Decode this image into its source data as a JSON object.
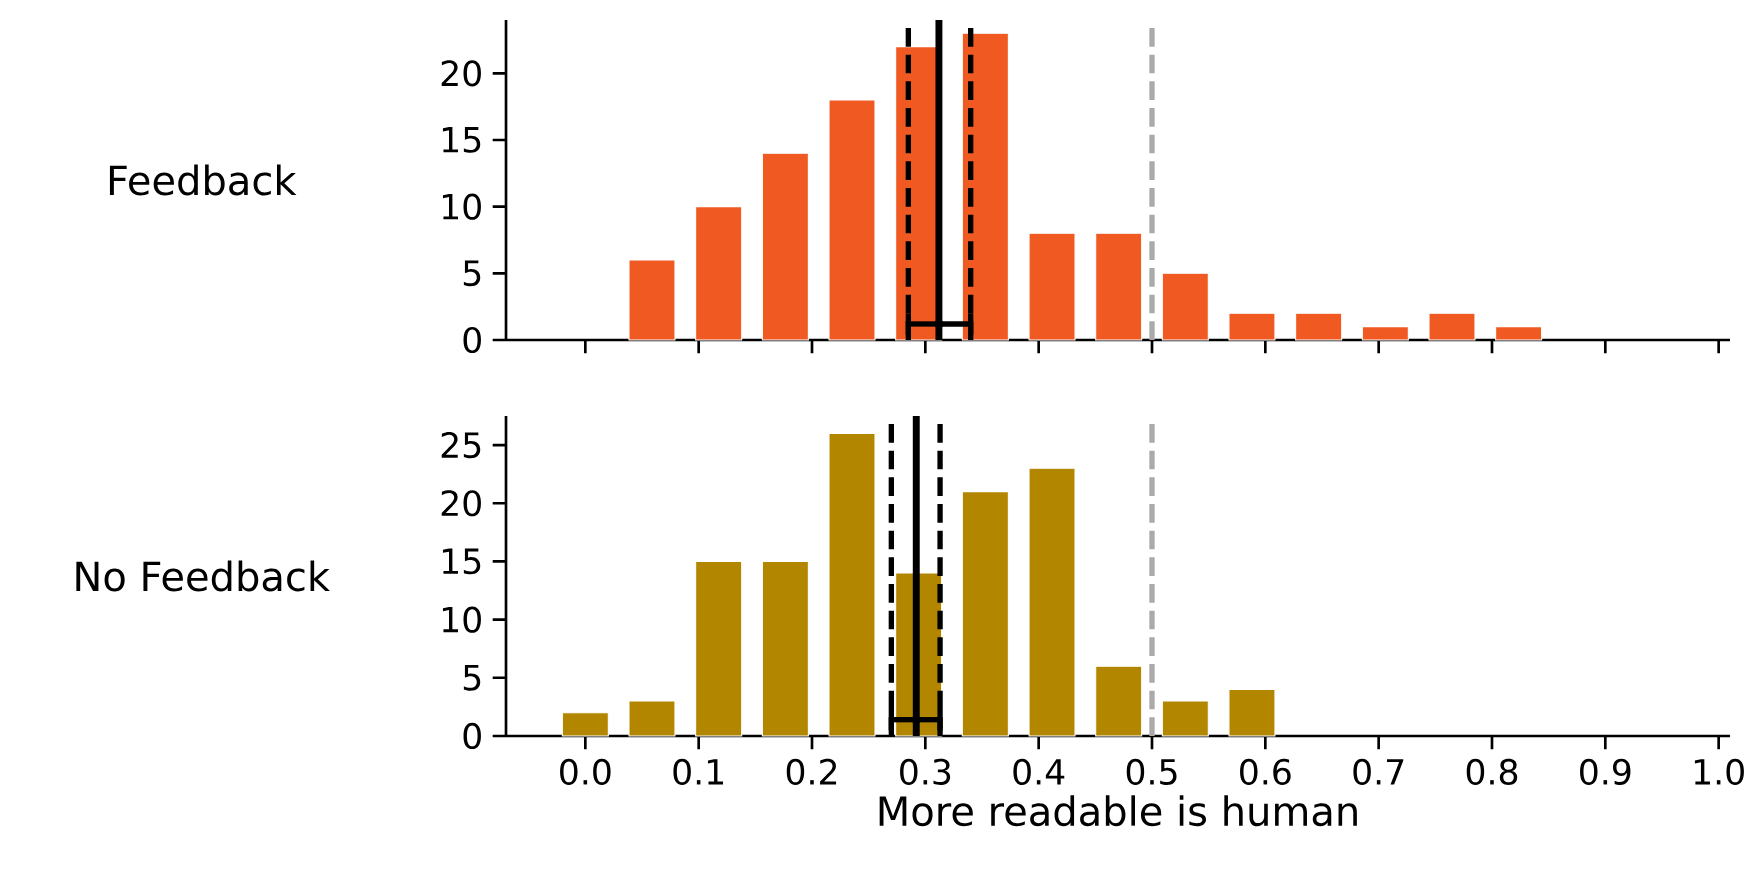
{
  "chart_data": [
    {
      "type": "histogram",
      "ylabel": "Feedback",
      "bins": [
        -0.0294,
        0.0294,
        0.0882,
        0.1471,
        0.2059,
        0.2647,
        0.3235,
        0.3824,
        0.4412,
        0.5,
        0.5588,
        0.6176,
        0.6765,
        0.7353,
        0.7941,
        0.8529
      ],
      "series": [
        {
          "color": "#f05a22",
          "values": [
            0,
            6,
            10,
            14,
            18,
            22,
            23,
            8,
            8,
            5,
            2,
            2,
            1,
            2,
            1
          ]
        },
        {
          "type": "scatter",
          "color": "#000000",
          "x": [
            0.312
          ],
          "values": [
            1.2
          ],
          "xerrors": [
            [
              0.285,
              0.34
            ]
          ]
        }
      ],
      "xlim": [
        -0.07,
        1.01
      ],
      "ylim": [
        0,
        24
      ],
      "xticks": [
        0,
        0.1,
        0.2,
        0.3,
        0.4,
        0.5,
        0.6,
        0.7,
        0.8,
        0.9,
        1
      ],
      "yticks": [
        0,
        5,
        10,
        15,
        20
      ],
      "tick_labels": "y",
      "ref_lines": [
        {
          "axis": "x",
          "value": 0.312,
          "color": "#000000",
          "line_style": "solid"
        },
        {
          "axis": "x",
          "value": 0.285,
          "color": "#000000",
          "line_style": "dashed"
        },
        {
          "axis": "x",
          "value": 0.34,
          "color": "#000000",
          "line_style": "dashed"
        },
        {
          "axis": "x",
          "value": 0.5,
          "color": "#aaaaaa",
          "line_style": "dashed"
        }
      ]
    },
    {
      "type": "histogram",
      "ylabel": "No Feedback",
      "xlabel": "More readable is human",
      "bins": [
        -0.0294,
        0.0294,
        0.0882,
        0.1471,
        0.2059,
        0.2647,
        0.3235,
        0.3824,
        0.4412,
        0.5,
        0.5588,
        0.6176,
        0.6765,
        0.7353,
        0.7941,
        0.8529
      ],
      "series": [
        {
          "color": "#b38600",
          "values": [
            2,
            3,
            15,
            15,
            26,
            14,
            21,
            23,
            6,
            3,
            4,
            0,
            0,
            0,
            0
          ]
        },
        {
          "type": "scatter",
          "color": "#000000",
          "x": [
            0.292
          ],
          "values": [
            1.4
          ],
          "xerrors": [
            [
              0.27,
              0.313
            ]
          ]
        }
      ],
      "xlim": [
        -0.07,
        1.01
      ],
      "ylim": [
        0,
        27.5
      ],
      "xticks": [
        {
          "value": 0,
          "label": "0.0"
        },
        0.1,
        0.2,
        0.3,
        0.4,
        0.5,
        0.6,
        0.7,
        0.8,
        0.9,
        {
          "value": 1,
          "label": "1.0"
        }
      ],
      "yticks": [
        0,
        5,
        10,
        15,
        20,
        25
      ],
      "ref_lines": [
        {
          "axis": "x",
          "value": 0.292,
          "color": "#000000",
          "line_style": "solid"
        },
        {
          "axis": "x",
          "value": 0.27,
          "color": "#000000",
          "line_style": "dashed"
        },
        {
          "axis": "x",
          "value": 0.313,
          "color": "#000000",
          "line_style": "dashed"
        },
        {
          "axis": "x",
          "value": 0.5,
          "color": "#aaaaaa",
          "line_style": "dashed"
        }
      ]
    }
  ]
}
